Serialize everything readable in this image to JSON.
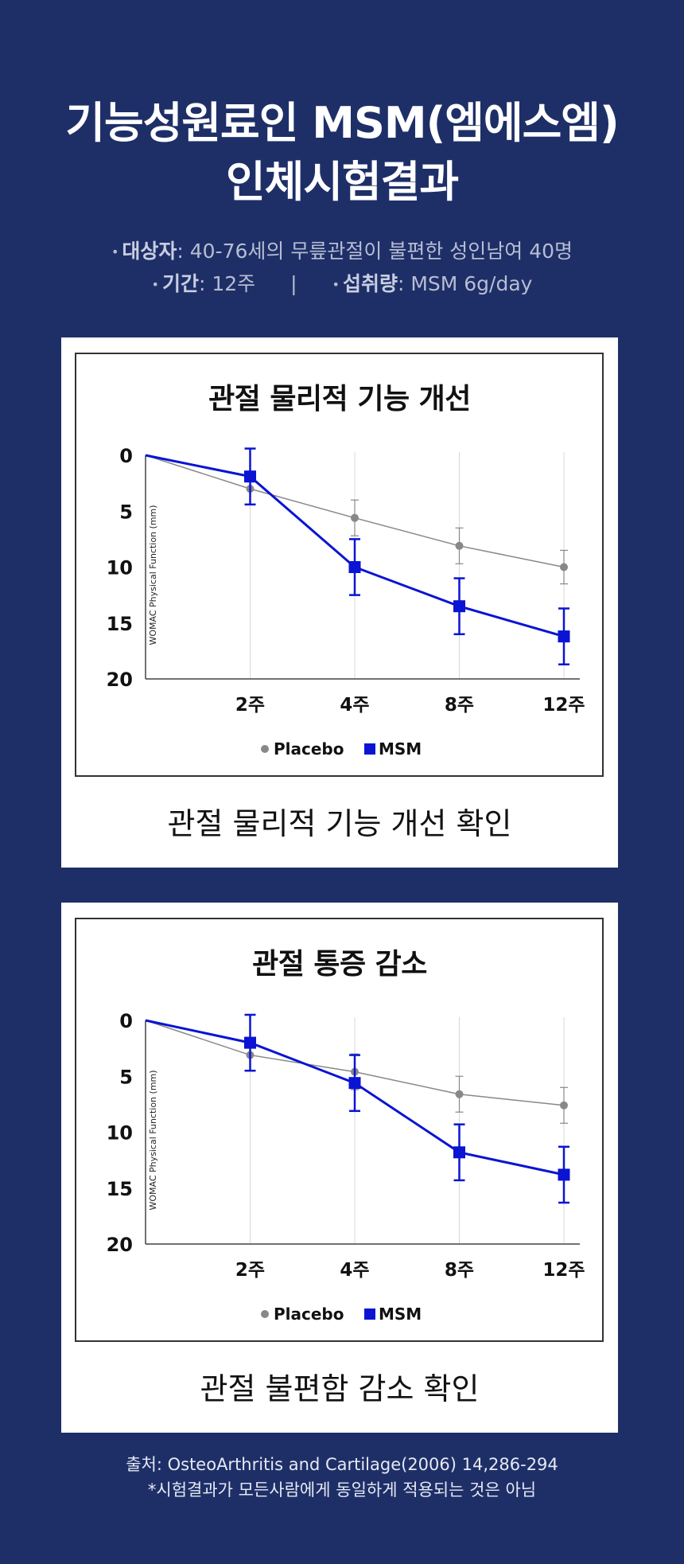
{
  "header": {
    "title_line1": "기능성원료인 MSM(엠에스엠)",
    "title_line2": "인체시험결과",
    "subject_label": "대상자",
    "subject_value": ": 40-76세의 무릎관절이 불편한 성인남여 40명",
    "period_label": "기간",
    "period_value": ": 12주",
    "separator": "|",
    "intake_label": "섭취량",
    "intake_value": ": MSM 6g/day"
  },
  "cards": [
    {
      "caption": "관절 물리적 기능 개선 확인"
    },
    {
      "caption": "관절 불편함 감소 확인"
    }
  ],
  "chart_data": [
    {
      "type": "line",
      "title": "관절 물리적 기능 개선",
      "ylabel": "WOMAC Physical Function (mm)",
      "xlabel": "",
      "categories": [
        "",
        "2주",
        "4주",
        "8주",
        "12주"
      ],
      "ylim": [
        0,
        20
      ],
      "y_inverted": true,
      "yticks": [
        0,
        5,
        10,
        15,
        20
      ],
      "grid": "vertical",
      "legend_position": "bottom",
      "series": [
        {
          "name": "Placebo",
          "color": "#888888",
          "marker": "circle",
          "values": [
            0,
            3.0,
            5.6,
            8.1,
            10.0
          ],
          "error": [
            0,
            1.4,
            1.6,
            1.6,
            1.5
          ]
        },
        {
          "name": "MSM",
          "color": "#0a14d2",
          "marker": "square",
          "values": [
            0,
            1.9,
            10.0,
            13.5,
            16.2
          ],
          "error": [
            0,
            2.5,
            2.5,
            2.5,
            2.5
          ]
        }
      ]
    },
    {
      "type": "line",
      "title": "관절 통증 감소",
      "ylabel": "WOMAC Physical Function (mm)",
      "xlabel": "",
      "categories": [
        "",
        "2주",
        "4주",
        "8주",
        "12주"
      ],
      "ylim": [
        0,
        20
      ],
      "y_inverted": true,
      "yticks": [
        0,
        5,
        10,
        15,
        20
      ],
      "grid": "vertical",
      "legend_position": "bottom",
      "series": [
        {
          "name": "Placebo",
          "color": "#888888",
          "marker": "circle",
          "values": [
            0,
            3.1,
            4.6,
            6.6,
            7.6
          ],
          "error": [
            0,
            1.4,
            1.6,
            1.6,
            1.6
          ]
        },
        {
          "name": "MSM",
          "color": "#0a14d2",
          "marker": "square",
          "values": [
            0,
            2.0,
            5.6,
            11.8,
            13.8
          ],
          "error": [
            0,
            2.5,
            2.5,
            2.5,
            2.5
          ]
        }
      ]
    }
  ],
  "footer": {
    "source": "출처: OsteoArthritis and Cartilage(2006) 14,286-294",
    "disclaimer": "*시험결과가 모든사람에게 동일하게 적용되는 것은 아님"
  }
}
